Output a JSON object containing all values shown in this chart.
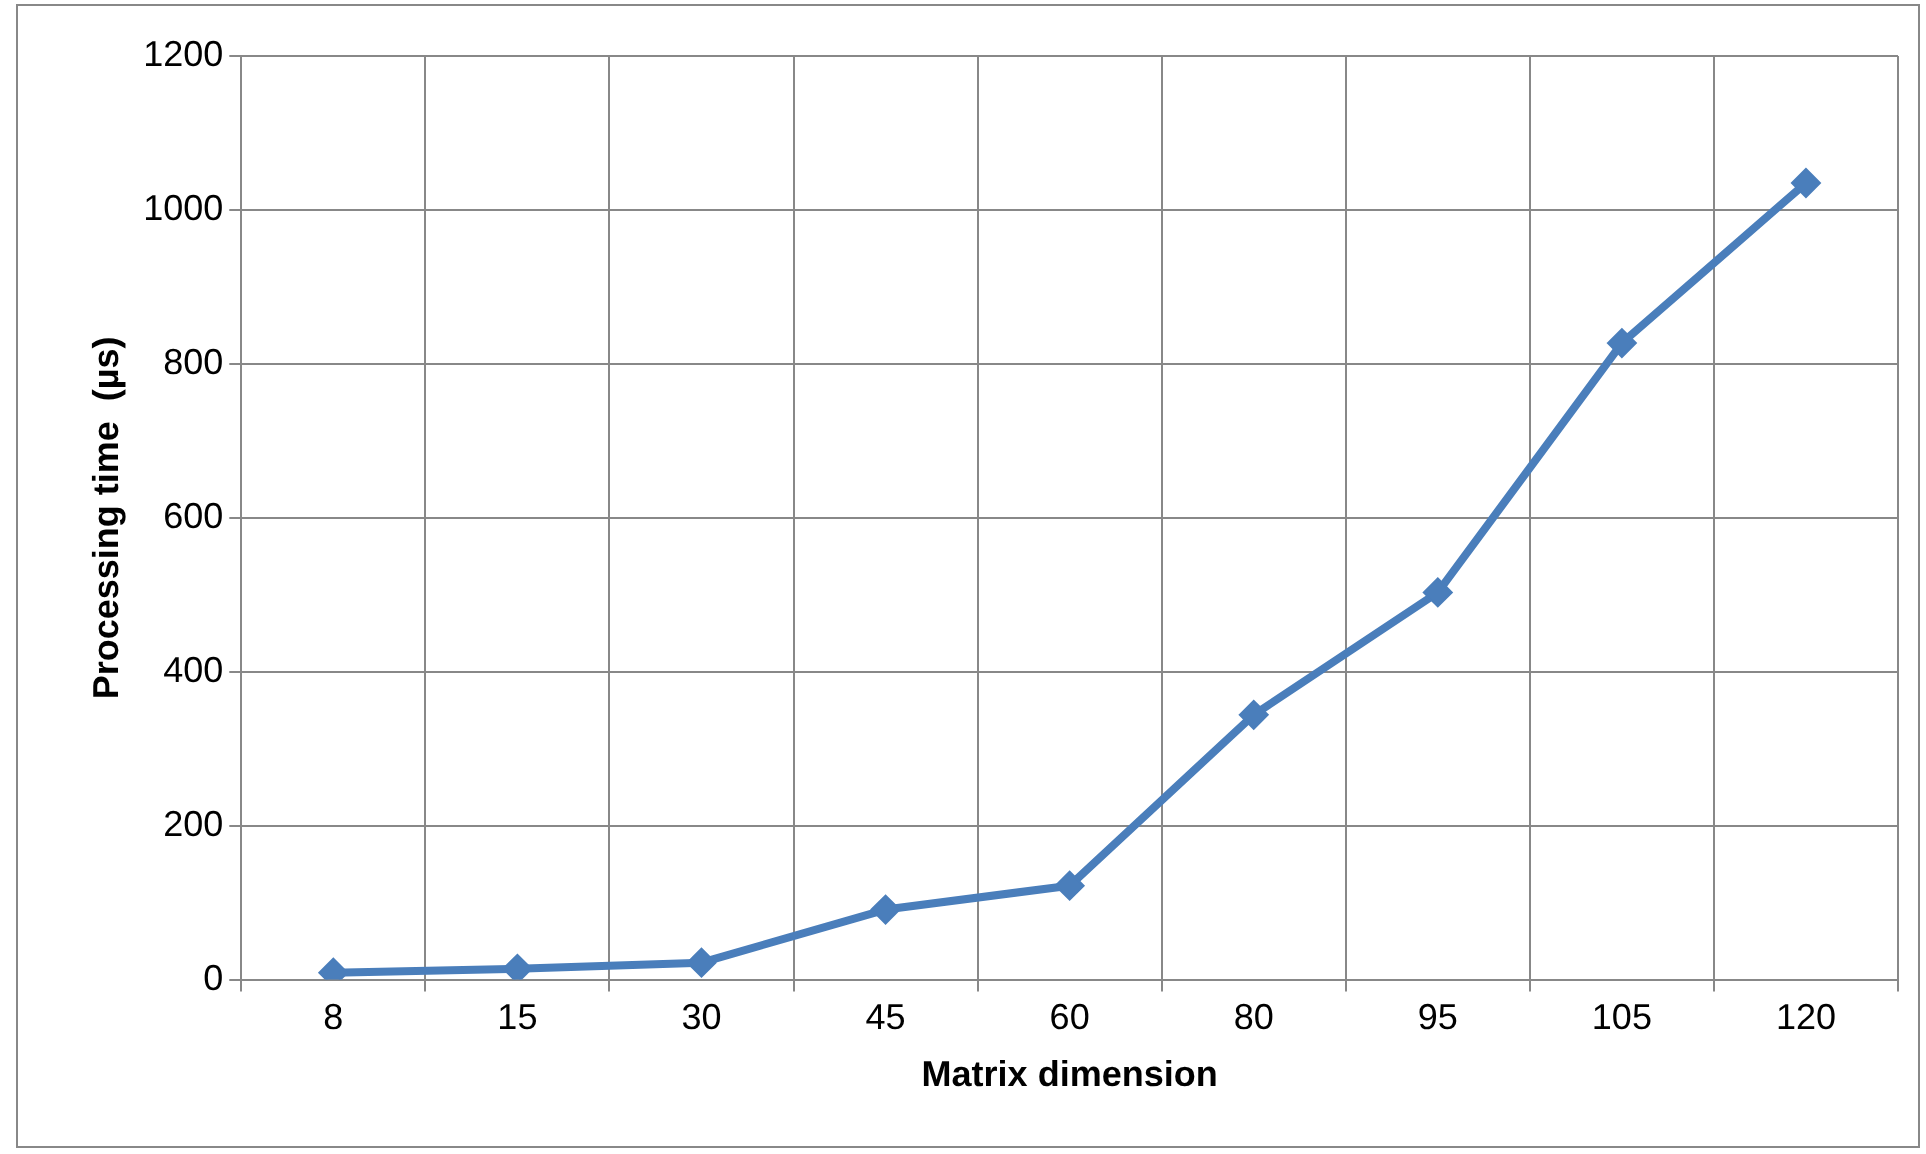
{
  "chart_data": {
    "type": "line",
    "xlabel": "Matrix dimension",
    "ylabel": "Processing time  (µs)",
    "categories": [
      "8",
      "15",
      "30",
      "45",
      "60",
      "80",
      "95",
      "105",
      "120"
    ],
    "series": [
      {
        "color": "#4a7ebb",
        "values": [
          9,
          14,
          22,
          91,
          122,
          344,
          503,
          827,
          1035
        ]
      }
    ],
    "ylim": [
      0,
      1200
    ],
    "yticks": [
      0,
      200,
      400,
      600,
      800,
      1000,
      1200
    ],
    "grid": true,
    "legend": false,
    "marker": "diamond",
    "line_style": "solid"
  }
}
